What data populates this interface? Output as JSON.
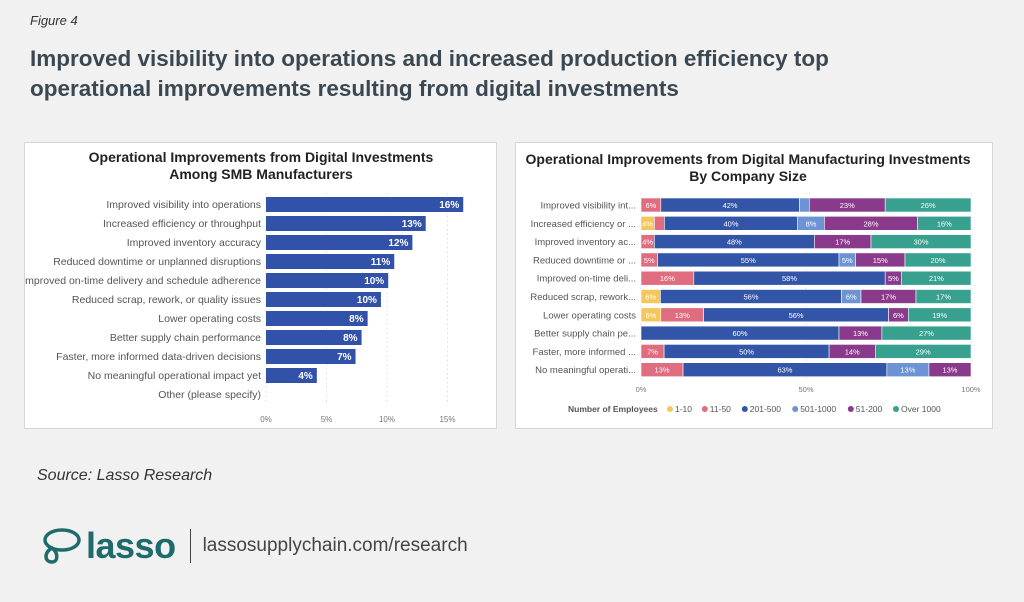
{
  "figure_label": "Figure 4",
  "headline": "Improved visibility into operations and increased production efficiency top operational improvements resulting from digital investments",
  "source": "Source: Lasso Research",
  "logo": {
    "word": "lasso",
    "url": "lassosupplychain.com/research"
  },
  "chart_data": [
    {
      "type": "bar",
      "orientation": "horizontal",
      "title": "Operational Improvements from Digital Investments Among SMB Manufacturers",
      "categories": [
        "Improved visibility into operations",
        "Increased efficiency or throughput",
        "Improved inventory accuracy",
        "Reduced downtime or unplanned disruptions",
        "Improved on-time delivery and schedule adherence",
        "Reduced scrap, rework, or quality issues",
        "Lower operating costs",
        "Better supply chain performance",
        "Faster, more informed data-driven decisions",
        "No meaningful operational impact yet",
        "Other (please specify)"
      ],
      "values": [
        16.3,
        13.2,
        12.1,
        10.6,
        10.1,
        9.5,
        8.4,
        7.9,
        7.4,
        4.2,
        0
      ],
      "data_labels": [
        "16%",
        "13%",
        "12%",
        "11%",
        "10%",
        "10%",
        "8%",
        "8%",
        "7%",
        "4%",
        ""
      ],
      "xlim": [
        0,
        17
      ],
      "xticks": [
        "0%",
        "5%",
        "10%",
        "15%"
      ],
      "xtick_values": [
        0,
        5,
        10,
        15
      ],
      "grid": true,
      "color": "#3152a8"
    },
    {
      "type": "bar",
      "orientation": "horizontal",
      "stacked": "100%",
      "title": "Operational Improvements from Digital Manufacturing Investments By Company Size",
      "categories": [
        "Improved visibility int...",
        "Increased efficiency or ...",
        "Improved inventory ac...",
        "Reduced downtime or ...",
        "Improved on-time deli...",
        "Reduced scrap, rework...",
        "Lower operating costs",
        "Better supply chain pe...",
        "Faster, more informed ...",
        "No meaningful operati..."
      ],
      "legend_title": "Number of Employees",
      "legend_position": "bottom",
      "series": [
        {
          "name": "1-10",
          "color": "#f5c75a",
          "values": [
            0,
            4,
            0,
            0,
            0,
            6,
            6,
            0,
            0,
            0
          ]
        },
        {
          "name": "11-50",
          "color": "#e06c80",
          "values": [
            6,
            3,
            4,
            5,
            16,
            0,
            13,
            0,
            7,
            13
          ]
        },
        {
          "name": "201-500",
          "color": "#3355a8",
          "values": [
            42,
            40,
            48,
            55,
            58,
            56,
            56,
            60,
            50,
            63
          ]
        },
        {
          "name": "501-1000",
          "color": "#6c93d3",
          "values": [
            3,
            8,
            0,
            5,
            0,
            6,
            0,
            0,
            0,
            13
          ]
        },
        {
          "name": "51-200",
          "color": "#8a3a8a",
          "values": [
            23,
            28,
            17,
            15,
            5,
            17,
            6,
            13,
            14,
            13
          ]
        },
        {
          "name": "Over 1000",
          "color": "#37a08e",
          "values": [
            26,
            16,
            30,
            20,
            21,
            17,
            19,
            27,
            29,
            0
          ]
        }
      ],
      "xticks": [
        "0%",
        "50%",
        "100%"
      ],
      "xtick_values": [
        0,
        50,
        100
      ],
      "grid": true
    }
  ]
}
